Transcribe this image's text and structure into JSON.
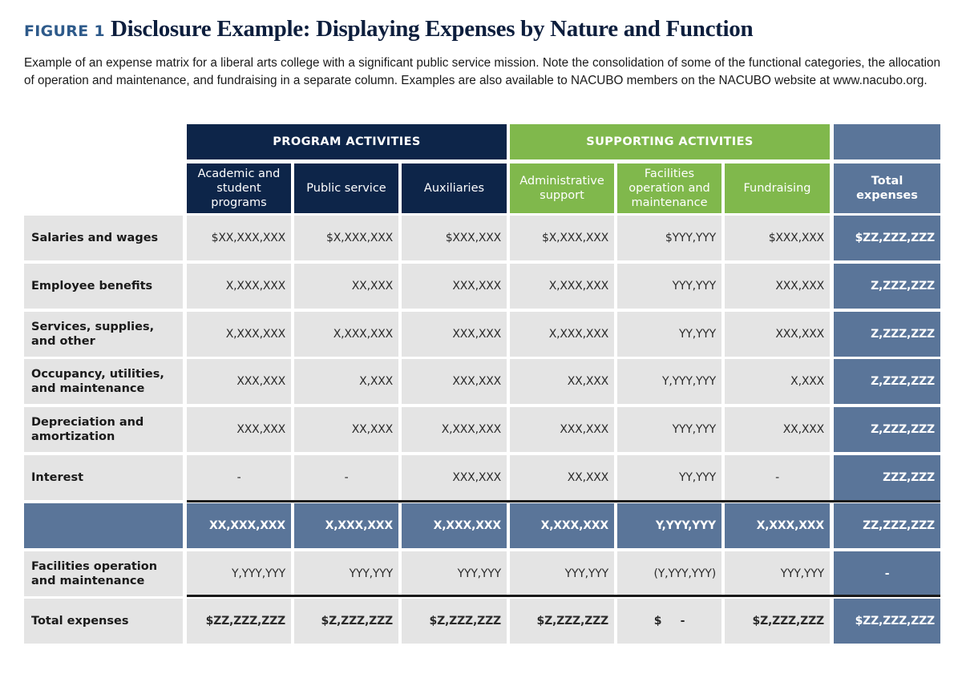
{
  "title": {
    "label": "FIGURE 1",
    "text": "Disclosure Example: Displaying Expenses by Nature and Function"
  },
  "caption": "Example of an expense matrix for a liberal arts college with a significant public service mission. Note the consolidation of some of the functional categories, the allocation of operation and maintenance, and fundraising in a separate column. Examples are also available to NACUBO members on the NACUBO website at www.nacubo.org.",
  "table": {
    "groups": [
      "PROGRAM ACTIVITIES",
      "SUPPORTING ACTIVITIES"
    ],
    "columns": [
      "Academic and student programs",
      "Public service",
      "Auxiliaries",
      "Administrative support",
      "Facilities operation and maintenance",
      "Fundraising",
      "Total expenses"
    ],
    "rows": [
      {
        "label": "Salaries and wages",
        "values": [
          "$XX,XXX,XXX",
          "$X,XXX,XXX",
          "$XXX,XXX",
          "$X,XXX,XXX",
          "$YYY,YYY",
          "$XXX,XXX",
          "$ZZ,ZZZ,ZZZ"
        ]
      },
      {
        "label": "Employee benefits",
        "values": [
          "X,XXX,XXX",
          "XX,XXX",
          "XXX,XXX",
          "X,XXX,XXX",
          "YYY,YYY",
          "XXX,XXX",
          "Z,ZZZ,ZZZ"
        ]
      },
      {
        "label": "Services, supplies, and other",
        "values": [
          "X,XXX,XXX",
          "X,XXX,XXX",
          "XXX,XXX",
          "X,XXX,XXX",
          "YY,YYY",
          "XXX,XXX",
          "Z,ZZZ,ZZZ"
        ]
      },
      {
        "label": "Occupancy, utilities, and maintenance",
        "values": [
          "XXX,XXX",
          "X,XXX",
          "XXX,XXX",
          "XX,XXX",
          "Y,YYY,YYY",
          "X,XXX",
          "Z,ZZZ,ZZZ"
        ]
      },
      {
        "label": "Depreciation and amortization",
        "values": [
          "XXX,XXX",
          "XX,XXX",
          "X,XXX,XXX",
          "XXX,XXX",
          "YYY,YYY",
          "XX,XXX",
          "Z,ZZZ,ZZZ"
        ]
      },
      {
        "label": "Interest",
        "values": [
          "-",
          "-",
          "XXX,XXX",
          "XX,XXX",
          "YY,YYY",
          "-",
          "ZZZ,ZZZ"
        ]
      }
    ],
    "subtotal": {
      "label": "",
      "values": [
        "XX,XXX,XXX",
        "X,XXX,XXX",
        "X,XXX,XXX",
        "X,XXX,XXX",
        "Y,YYY,YYY",
        "X,XXX,XXX",
        "ZZ,ZZZ,ZZZ"
      ]
    },
    "allocation": {
      "label": "Facilities operation and maintenance",
      "values": [
        "Y,YYY,YYY",
        "YYY,YYY",
        "YYY,YYY",
        "YYY,YYY",
        "(Y,YYY,YYY)",
        "YYY,YYY",
        "-"
      ]
    },
    "total": {
      "label": "Total expenses",
      "values": [
        "$ZZ,ZZZ,ZZZ",
        "$Z,ZZZ,ZZZ",
        "$Z,ZZZ,ZZZ",
        "$Z,ZZZ,ZZZ",
        "$     -",
        "$Z,ZZZ,ZZZ",
        "$ZZ,ZZZ,ZZZ"
      ]
    }
  },
  "colors": {
    "navy": "#0d2549",
    "green": "#80b84c",
    "slate": "#5a7599",
    "gray": "#e4e4e4"
  }
}
